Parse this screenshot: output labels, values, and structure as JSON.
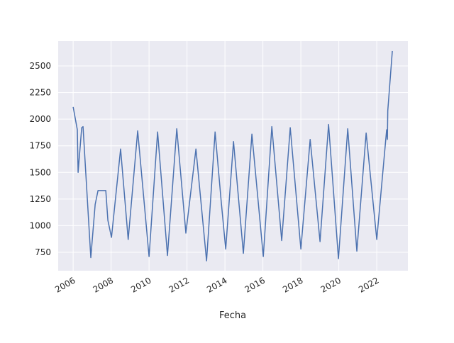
{
  "chart_data": {
    "type": "line",
    "xlabel": "Fecha",
    "x": [
      2006.0,
      2006.22,
      2006.26,
      2006.45,
      2006.52,
      2006.93,
      2007.16,
      2007.31,
      2007.72,
      2007.83,
      2008.02,
      2008.5,
      2008.9,
      2009.4,
      2010.0,
      2010.45,
      2010.97,
      2011.46,
      2011.94,
      2012.47,
      2013.03,
      2013.48,
      2013.8,
      2014.04,
      2014.45,
      2014.97,
      2015.42,
      2016.02,
      2016.47,
      2016.99,
      2017.44,
      2018.0,
      2018.49,
      2019.01,
      2019.46,
      2019.98,
      2020.47,
      2020.95,
      2021.44,
      2022.0,
      2022.52,
      2022.56,
      2022.58,
      2022.82
    ],
    "series": [
      {
        "color": "#4c72b0",
        "values": [
          2115,
          1900,
          1500,
          1920,
          1930,
          700,
          1200,
          1330,
          1330,
          1050,
          890,
          1720,
          870,
          1890,
          710,
          1880,
          720,
          1910,
          930,
          1720,
          670,
          1880,
          1230,
          780,
          1790,
          740,
          1860,
          710,
          1930,
          860,
          1920,
          780,
          1810,
          850,
          1950,
          690,
          1910,
          760,
          1870,
          870,
          1900,
          1810,
          2080,
          2640
        ]
      }
    ],
    "xlim": [
      2005.21,
      2023.64
    ],
    "ylim": [
      577,
      2733
    ],
    "xticks": [
      2006,
      2008,
      2010,
      2012,
      2014,
      2016,
      2018,
      2020,
      2022
    ],
    "yticks": [
      750,
      1000,
      1250,
      1500,
      1750,
      2000,
      2250,
      2500
    ],
    "grid": true
  }
}
